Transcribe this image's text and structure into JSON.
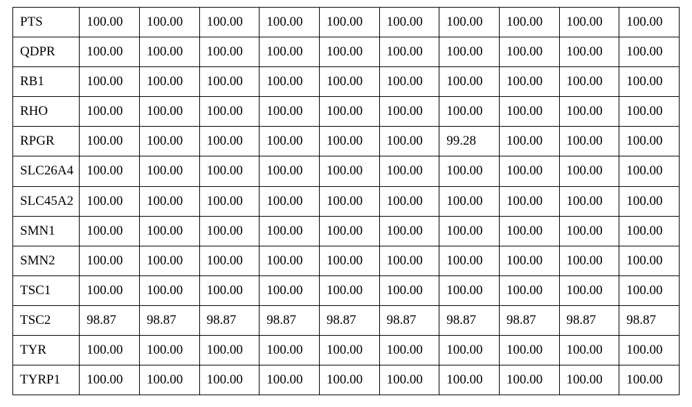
{
  "table": {
    "type": "table",
    "background_color": "#ffffff",
    "border_color": "#000000",
    "text_color": "#000000",
    "font_family": "Times New Roman",
    "font_size_pt": 14,
    "col_widths_pct": [
      10.0,
      9.0,
      9.0,
      9.0,
      9.0,
      9.0,
      9.0,
      9.0,
      9.0,
      9.0,
      9.0
    ],
    "label_column_index": 0,
    "rows": [
      {
        "label": "PTS",
        "values": [
          "100.00",
          "100.00",
          "100.00",
          "100.00",
          "100.00",
          "100.00",
          "100.00",
          "100.00",
          "100.00",
          "100.00"
        ]
      },
      {
        "label": "QDPR",
        "values": [
          "100.00",
          "100.00",
          "100.00",
          "100.00",
          "100.00",
          "100.00",
          "100.00",
          "100.00",
          "100.00",
          "100.00"
        ]
      },
      {
        "label": "RB1",
        "values": [
          "100.00",
          "100.00",
          "100.00",
          "100.00",
          "100.00",
          "100.00",
          "100.00",
          "100.00",
          "100.00",
          "100.00"
        ]
      },
      {
        "label": "RHO",
        "values": [
          "100.00",
          "100.00",
          "100.00",
          "100.00",
          "100.00",
          "100.00",
          "100.00",
          "100.00",
          "100.00",
          "100.00"
        ]
      },
      {
        "label": "RPGR",
        "values": [
          "100.00",
          "100.00",
          "100.00",
          "100.00",
          "100.00",
          "100.00",
          "99.28",
          "100.00",
          "100.00",
          "100.00"
        ]
      },
      {
        "label": "SLC26A4",
        "values": [
          "100.00",
          "100.00",
          "100.00",
          "100.00",
          "100.00",
          "100.00",
          "100.00",
          "100.00",
          "100.00",
          "100.00"
        ]
      },
      {
        "label": "SLC45A2",
        "values": [
          "100.00",
          "100.00",
          "100.00",
          "100.00",
          "100.00",
          "100.00",
          "100.00",
          "100.00",
          "100.00",
          "100.00"
        ]
      },
      {
        "label": "SMN1",
        "values": [
          "100.00",
          "100.00",
          "100.00",
          "100.00",
          "100.00",
          "100.00",
          "100.00",
          "100.00",
          "100.00",
          "100.00"
        ]
      },
      {
        "label": "SMN2",
        "values": [
          "100.00",
          "100.00",
          "100.00",
          "100.00",
          "100.00",
          "100.00",
          "100.00",
          "100.00",
          "100.00",
          "100.00"
        ]
      },
      {
        "label": "TSC1",
        "values": [
          "100.00",
          "100.00",
          "100.00",
          "100.00",
          "100.00",
          "100.00",
          "100.00",
          "100.00",
          "100.00",
          "100.00"
        ]
      },
      {
        "label": "TSC2",
        "values": [
          "98.87",
          "98.87",
          "98.87",
          "98.87",
          "98.87",
          "98.87",
          "98.87",
          "98.87",
          "98.87",
          "98.87"
        ]
      },
      {
        "label": "TYR",
        "values": [
          "100.00",
          "100.00",
          "100.00",
          "100.00",
          "100.00",
          "100.00",
          "100.00",
          "100.00",
          "100.00",
          "100.00"
        ]
      },
      {
        "label": "TYRP1",
        "values": [
          "100.00",
          "100.00",
          "100.00",
          "100.00",
          "100.00",
          "100.00",
          "100.00",
          "100.00",
          "100.00",
          "100.00"
        ]
      }
    ]
  }
}
